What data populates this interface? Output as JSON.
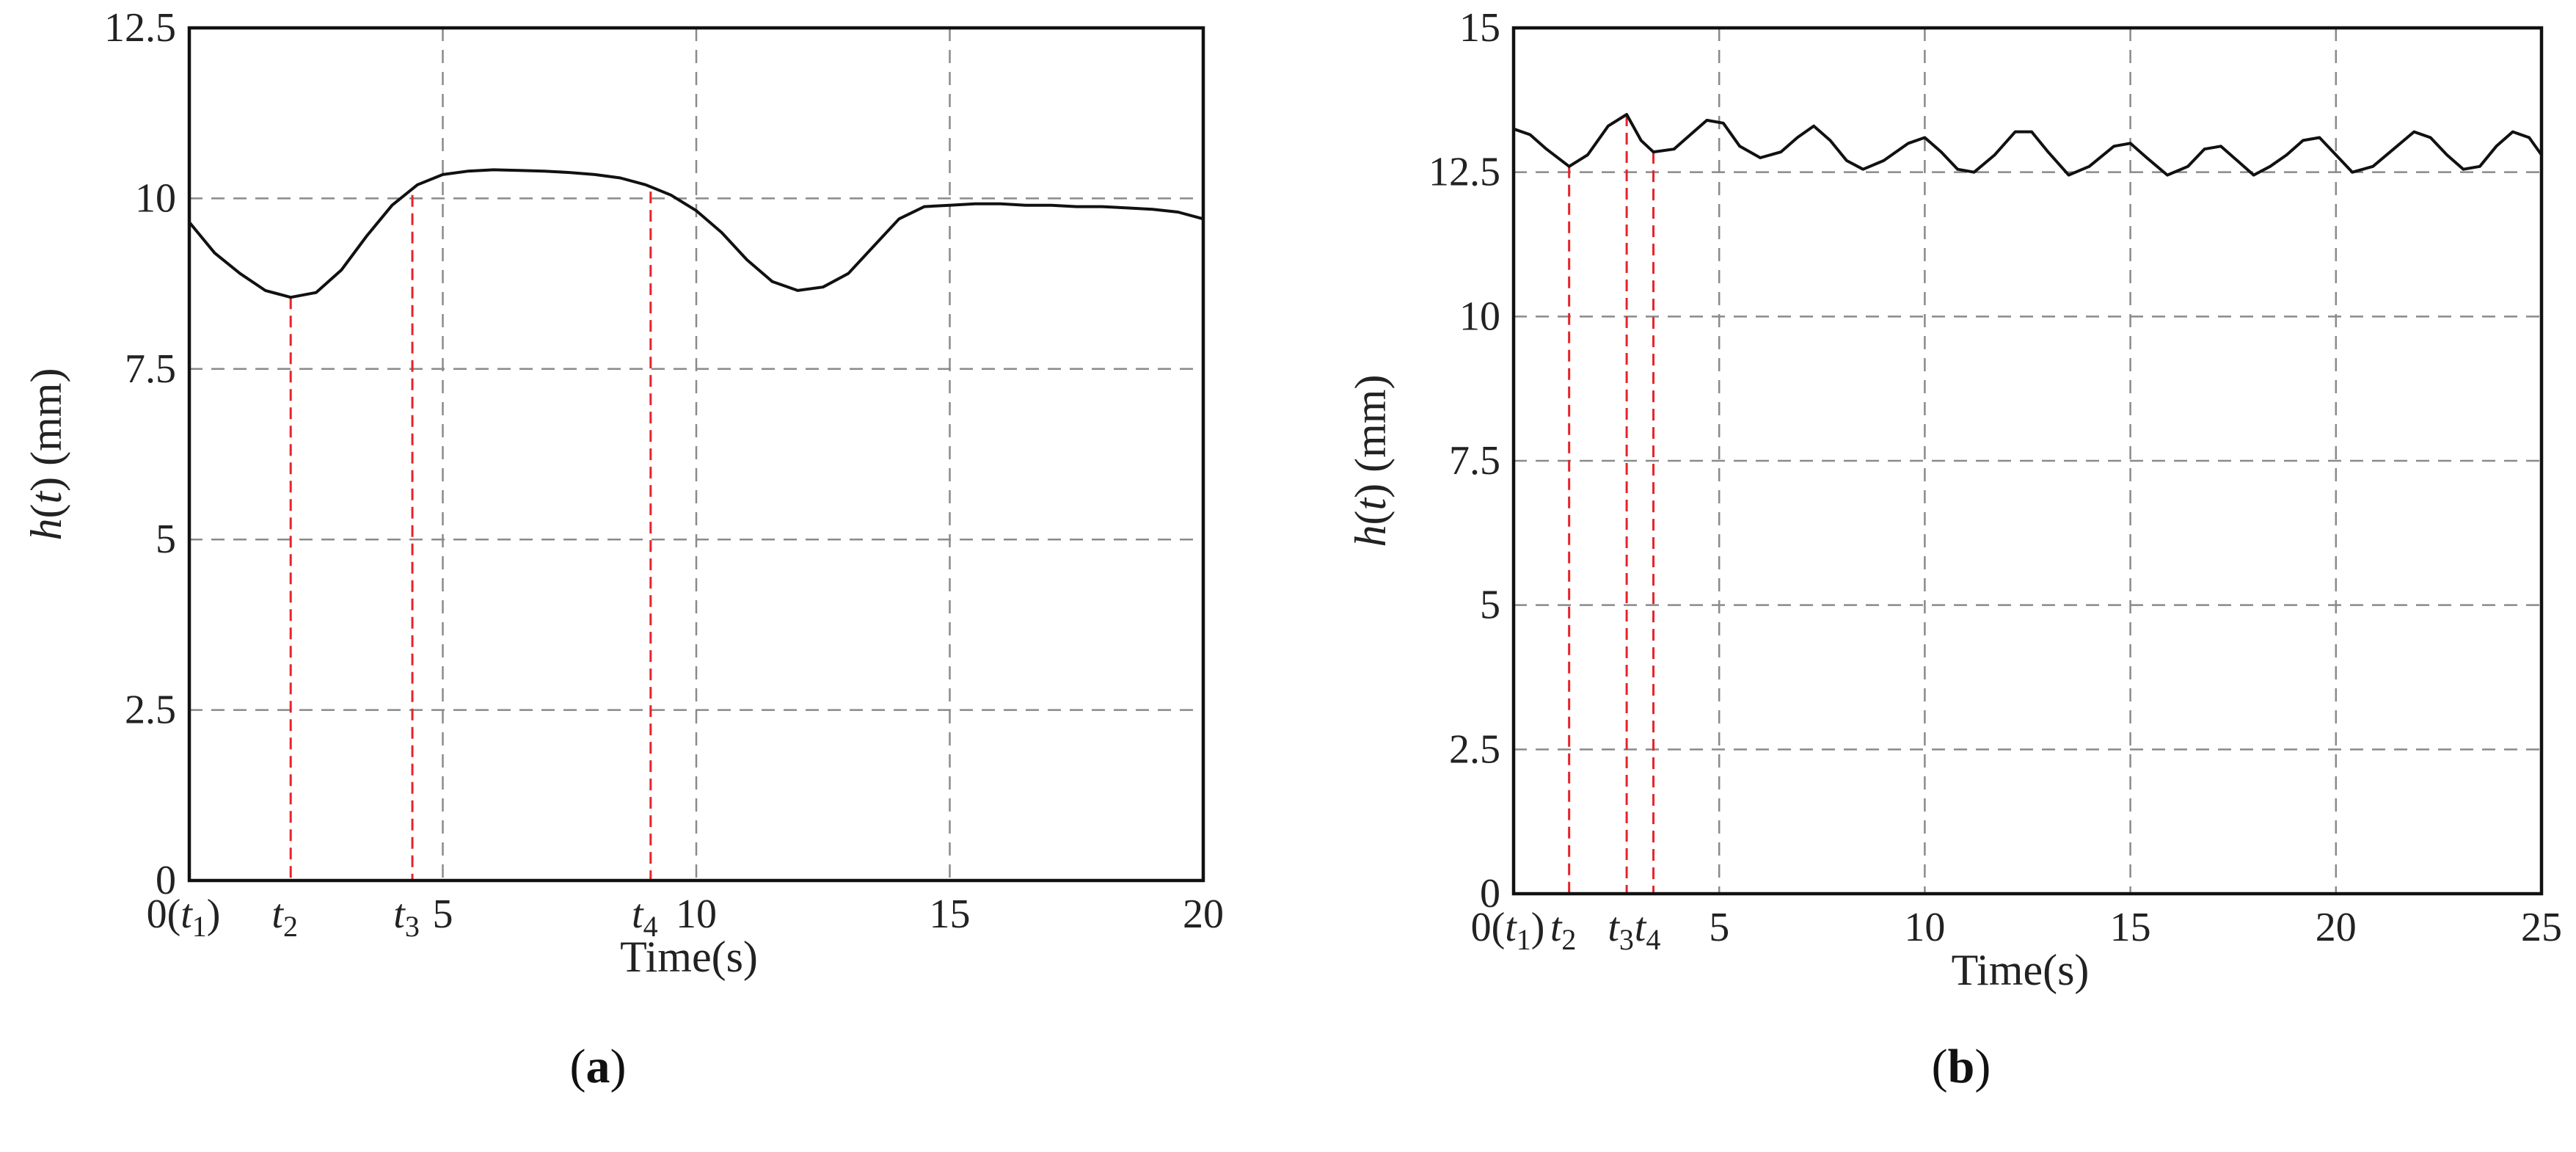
{
  "chart_data": [
    {
      "type": "line",
      "panel_label": "a",
      "xlabel": "Time(s)",
      "ylabel": "(mm)",
      "ylabel_func": "h",
      "ylabel_var": "t",
      "xlim": [
        0,
        20
      ],
      "ylim": [
        0,
        12.5
      ],
      "grid": true,
      "yticks": [
        0,
        2.5,
        5,
        7.5,
        10,
        12.5
      ],
      "yticklabels": [
        "0",
        "2.5",
        "5",
        "7.5",
        "10",
        "12.5"
      ],
      "xticks": [
        5,
        10,
        15,
        20
      ],
      "xticklabels": [
        "5",
        "10",
        "15",
        "20"
      ],
      "origin_label": {
        "pre": "0(",
        "var": "t",
        "sub": "1",
        "post": ")"
      },
      "markers": [
        {
          "var": "t",
          "sub": "2",
          "x": 2.0,
          "y": 8.55,
          "color": "#e8232a"
        },
        {
          "var": "t",
          "sub": "3",
          "x": 4.4,
          "y": 10.05,
          "color": "#e8232a"
        },
        {
          "var": "t",
          "sub": "4",
          "x": 9.1,
          "y": 10.1,
          "color": "#e8232a"
        }
      ],
      "series": [
        {
          "x": [
            0,
            0.5,
            1.0,
            1.5,
            2.0,
            2.5,
            3.0,
            3.5,
            4.0,
            4.5,
            5.0,
            5.5,
            6.0,
            6.5,
            7.0,
            7.5,
            8.0,
            8.5,
            9.0,
            9.5,
            10.0,
            10.5,
            11.0,
            11.5,
            12.0,
            12.5,
            13.0,
            13.5,
            14.0,
            14.5,
            15.0,
            15.5,
            16.0,
            16.5,
            17.0,
            17.5,
            18.0,
            18.5,
            19.0,
            19.5,
            20.0
          ],
          "y": [
            9.65,
            9.2,
            8.9,
            8.65,
            8.55,
            8.62,
            8.95,
            9.45,
            9.9,
            10.2,
            10.35,
            10.4,
            10.42,
            10.41,
            10.4,
            10.38,
            10.35,
            10.3,
            10.2,
            10.05,
            9.82,
            9.5,
            9.1,
            8.78,
            8.65,
            8.7,
            8.9,
            9.3,
            9.7,
            9.88,
            9.9,
            9.92,
            9.92,
            9.9,
            9.9,
            9.88,
            9.88,
            9.86,
            9.84,
            9.8,
            9.7
          ]
        }
      ]
    },
    {
      "type": "line",
      "panel_label": "b",
      "xlabel": "Time(s)",
      "ylabel": "(mm)",
      "ylabel_func": "h",
      "ylabel_var": "t",
      "xlim": [
        0,
        25
      ],
      "ylim": [
        0,
        15
      ],
      "grid": true,
      "yticks": [
        0,
        2.5,
        5,
        7.5,
        10,
        12.5,
        15
      ],
      "yticklabels": [
        "0",
        "2.5",
        "5",
        "7.5",
        "10",
        "12.5",
        "15"
      ],
      "xticks": [
        5,
        10,
        15,
        20,
        25
      ],
      "xticklabels": [
        "5",
        "10",
        "15",
        "20",
        "25"
      ],
      "origin_label": {
        "pre": "0(",
        "var": "t",
        "sub": "1",
        "post": ")"
      },
      "markers": [
        {
          "var": "t",
          "sub": "2",
          "x": 1.35,
          "y": 12.6,
          "color": "#e8232a"
        },
        {
          "var": "t",
          "sub": "3",
          "x": 2.75,
          "y": 13.5,
          "color": "#e8232a"
        },
        {
          "var": "t",
          "sub": "4",
          "x": 3.4,
          "y": 12.85,
          "color": "#e8232a"
        }
      ],
      "series": [
        {
          "x": [
            0,
            0.4,
            0.8,
            1.35,
            1.8,
            2.3,
            2.75,
            3.1,
            3.4,
            3.9,
            4.3,
            4.7,
            5.1,
            5.5,
            6.0,
            6.5,
            6.9,
            7.3,
            7.7,
            8.1,
            8.5,
            9.0,
            9.6,
            10.0,
            10.4,
            10.8,
            11.2,
            11.7,
            12.2,
            12.6,
            13.0,
            13.5,
            14.0,
            14.6,
            15.0,
            15.4,
            15.9,
            16.4,
            16.8,
            17.2,
            17.6,
            18.0,
            18.4,
            18.8,
            19.2,
            19.6,
            20.0,
            20.4,
            20.9,
            21.4,
            21.9,
            22.3,
            22.7,
            23.1,
            23.5,
            23.9,
            24.3,
            24.7,
            25.0
          ],
          "y": [
            13.25,
            13.15,
            12.9,
            12.6,
            12.8,
            13.3,
            13.5,
            13.05,
            12.85,
            12.9,
            13.15,
            13.4,
            13.35,
            12.95,
            12.75,
            12.85,
            13.1,
            13.3,
            13.05,
            12.7,
            12.55,
            12.7,
            13.0,
            13.1,
            12.85,
            12.55,
            12.5,
            12.8,
            13.2,
            13.2,
            12.85,
            12.45,
            12.6,
            12.95,
            13.0,
            12.75,
            12.45,
            12.6,
            12.9,
            12.95,
            12.7,
            12.45,
            12.6,
            12.8,
            13.05,
            13.1,
            12.8,
            12.5,
            12.6,
            12.9,
            13.2,
            13.1,
            12.8,
            12.55,
            12.6,
            12.95,
            13.2,
            13.1,
            12.8
          ]
        }
      ]
    }
  ]
}
